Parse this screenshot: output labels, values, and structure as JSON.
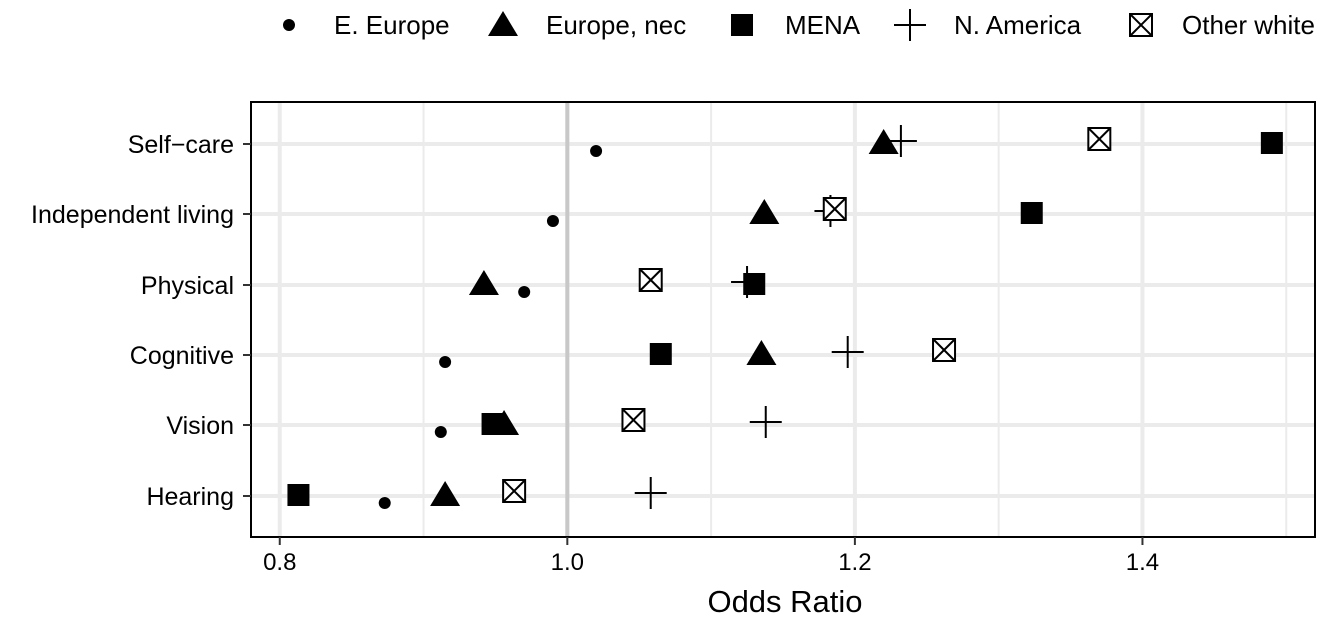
{
  "chart_data": {
    "type": "scatter",
    "title": "",
    "xlabel": "Odds Ratio",
    "ylabel": "",
    "xlim": [
      0.78,
      1.52
    ],
    "x_ticks": [
      "0.8",
      "1.0",
      "1.2",
      "1.4"
    ],
    "x_tick_values": [
      0.8,
      1.0,
      1.2,
      1.4
    ],
    "categories": [
      "Self−care",
      "Independent living",
      "Physical",
      "Cognitive",
      "Vision",
      "Hearing"
    ],
    "reference_line_x": 1.0,
    "grid": true,
    "legend_position": "top",
    "series": [
      {
        "name": "E. Europe",
        "marker": "circle",
        "values": [
          1.02,
          0.99,
          0.97,
          0.915,
          0.912,
          0.873
        ]
      },
      {
        "name": "Europe, nec",
        "marker": "triangle",
        "values": [
          1.22,
          1.137,
          0.942,
          1.135,
          0.956,
          0.915
        ]
      },
      {
        "name": "MENA",
        "marker": "square",
        "values": [
          1.49,
          1.323,
          1.13,
          1.065,
          0.948,
          0.813
        ]
      },
      {
        "name": "N. America",
        "marker": "plus",
        "values": [
          1.232,
          1.183,
          1.125,
          1.195,
          1.138,
          1.058
        ]
      },
      {
        "name": "Other white",
        "marker": "boxcross",
        "values": [
          1.37,
          1.186,
          1.058,
          1.262,
          1.046,
          0.963
        ]
      }
    ]
  },
  "colors": {
    "marker": "#000000",
    "grid": "#ebebeb",
    "reference_line": "#c8c8c8",
    "panel_border": "#000000"
  }
}
